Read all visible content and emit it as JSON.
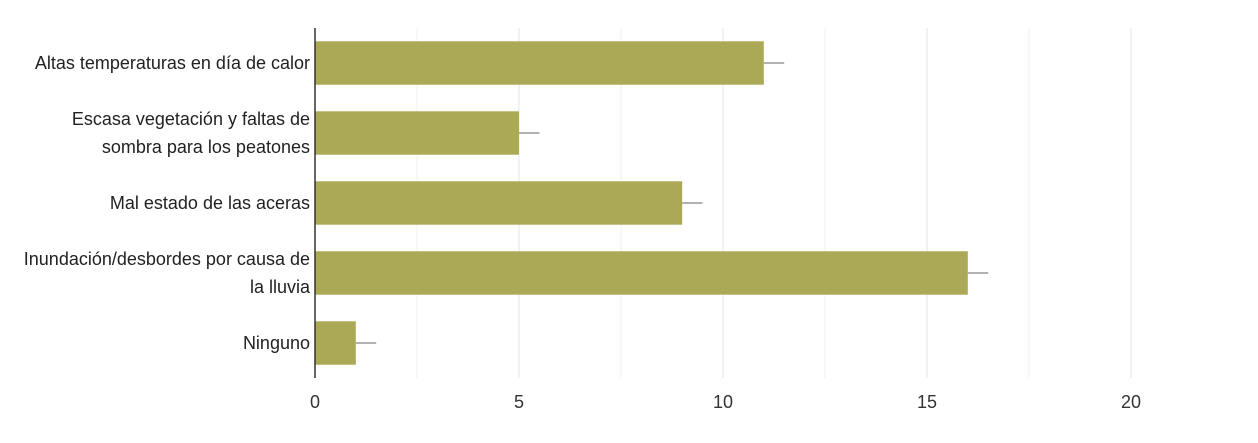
{
  "chart_data": {
    "type": "bar",
    "orientation": "horizontal",
    "categories": [
      "Altas temperaturas en día de calor",
      "Escasa vegetación y faltas de sombra para los peatones",
      "Mal estado de las aceras",
      "Inundación/desbordes por causa de la lluvia",
      "Ninguno"
    ],
    "values": [
      11,
      5,
      9,
      16,
      1
    ],
    "errors": [
      0.5,
      0.5,
      0.5,
      0.5,
      0.5
    ],
    "color": "#aba955",
    "xlim": [
      0,
      20
    ],
    "xticks": [
      0,
      5,
      10,
      15,
      20
    ],
    "minor_xticks": [
      2.5,
      7.5,
      12.5,
      17.5
    ],
    "grid": true
  }
}
